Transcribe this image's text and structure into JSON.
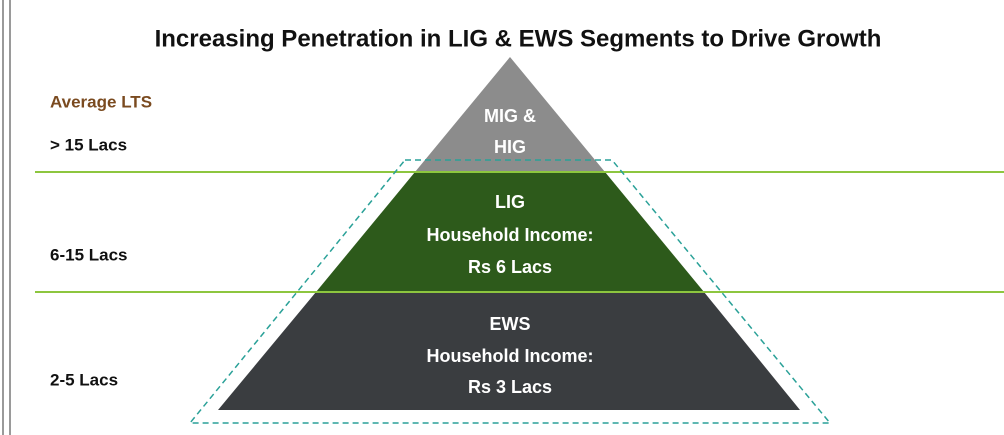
{
  "title": "Increasing Penetration in LIG & EWS Segments to Drive Growth",
  "left_labels": {
    "heading": "Average LTS",
    "levels": [
      "> 15 Lacs",
      "6-15 Lacs",
      "2-5 Lacs"
    ]
  },
  "tiers": [
    {
      "lines": [
        "MIG &",
        "HIG"
      ]
    },
    {
      "lines": [
        "LIG",
        "Household Income:",
        "Rs 6 Lacs"
      ]
    },
    {
      "lines": [
        "EWS",
        "Household Income:",
        "Rs 3 Lacs"
      ]
    }
  ]
}
